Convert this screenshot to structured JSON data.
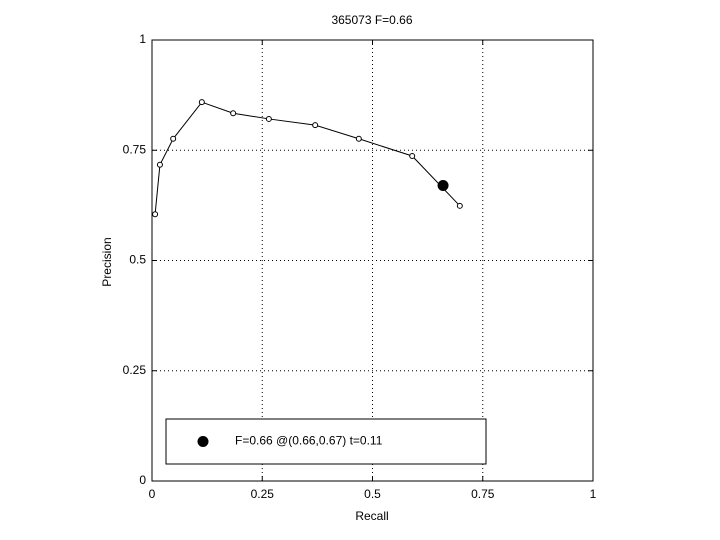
{
  "chart_data": {
    "type": "line",
    "title": "365073 F=0.66",
    "x_label": "Recall",
    "y_label": "Precision",
    "xlim": [
      0,
      1
    ],
    "ylim": [
      0,
      1
    ],
    "xticks": [
      0,
      0.25,
      0.5,
      0.75,
      1
    ],
    "yticks": [
      0,
      0.25,
      0.5,
      0.75,
      1
    ],
    "grid": true,
    "legend": "bottom",
    "series": [
      {
        "color": "#000000",
        "x": [
          0.007,
          0.018,
          0.048,
          0.113,
          0.184,
          0.265,
          0.37,
          0.469,
          0.59,
          0.698
        ],
        "values": [
          0.605,
          0.717,
          0.776,
          0.859,
          0.834,
          0.821,
          0.807,
          0.776,
          0.737,
          0.624
        ]
      },
      {
        "name": "F=0.66 @(0.66,0.67) t=0.11",
        "color": "#000000",
        "x": [
          0.66
        ],
        "values": [
          0.67
        ]
      }
    ]
  }
}
